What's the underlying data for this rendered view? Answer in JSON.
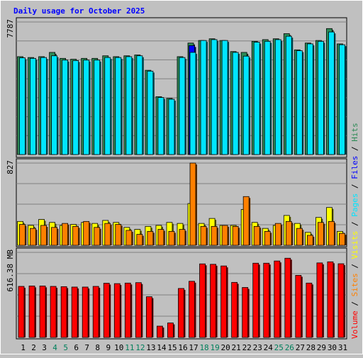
{
  "chart_data": {
    "type": "bar",
    "title": "Daily usage for October 2025",
    "categories": [
      "1",
      "2",
      "3",
      "4",
      "5",
      "6",
      "7",
      "8",
      "9",
      "10",
      "11",
      "12",
      "13",
      "14",
      "15",
      "16",
      "17",
      "18",
      "19",
      "20",
      "21",
      "22",
      "23",
      "24",
      "25",
      "26",
      "27",
      "28",
      "29",
      "30",
      "31"
    ],
    "weekend_days": [
      "4",
      "5",
      "11",
      "12",
      "18",
      "19",
      "25",
      "26"
    ],
    "panels": [
      {
        "id": "hits-files-pages",
        "ymax_label": "7787",
        "ymax": 7787,
        "series": [
          {
            "name": "Hits",
            "color": "#2e8b57",
            "values": [
              5750,
              5700,
              5750,
              6000,
              5650,
              5600,
              5650,
              5650,
              5800,
              5750,
              5800,
              5850,
              4950,
              3400,
              3300,
              5750,
              6550,
              6700,
              6800,
              6700,
              6050,
              6000,
              6650,
              6750,
              6800,
              7100,
              6150,
              6550,
              6700,
              7400,
              6500
            ]
          },
          {
            "name": "Files",
            "color": "#0000ff",
            "values": [
              0,
              0,
              0,
              0,
              0,
              0,
              0,
              0,
              0,
              0,
              0,
              0,
              0,
              0,
              0,
              0,
              6400,
              0,
              0,
              0,
              0,
              0,
              0,
              0,
              0,
              0,
              0,
              0,
              0,
              0,
              0
            ]
          },
          {
            "name": "Pages",
            "color": "#00e5ff",
            "values": [
              5680,
              5650,
              5700,
              5800,
              5550,
              5520,
              5550,
              5550,
              5700,
              5700,
              5750,
              5800,
              4900,
              3350,
              3250,
              5700,
              6000,
              6700,
              6750,
              6700,
              6000,
              5780,
              6600,
              6650,
              6750,
              6950,
              6100,
              6500,
              6650,
              7200,
              6450
            ]
          }
        ]
      },
      {
        "id": "visits-sites",
        "ymax_label": "827",
        "ymax": 827,
        "series": [
          {
            "name": "Visits",
            "color": "#ffff00",
            "values": [
              240,
              200,
              260,
              230,
              200,
              210,
              230,
              220,
              250,
              230,
              180,
              160,
              190,
              200,
              230,
              220,
              420,
              220,
              270,
              200,
              200,
              360,
              230,
              170,
              200,
              300,
              220,
              130,
              280,
              380,
              140
            ]
          },
          {
            "name": "Sites",
            "color": "#ff8000",
            "values": [
              210,
              170,
              200,
              180,
              220,
              190,
              240,
              180,
              220,
              210,
              150,
              110,
              140,
              160,
              140,
              160,
              827,
              190,
              190,
              200,
              190,
              490,
              190,
              140,
              220,
              240,
              170,
              100,
              230,
              240,
              120
            ]
          }
        ]
      },
      {
        "id": "volume",
        "ymax_label": "616.38 MB",
        "ymax": 616.38,
        "series": [
          {
            "name": "Volume",
            "color": "#ff0000",
            "values": [
              370,
              373,
              373,
              370,
              368,
              365,
              365,
              370,
              393,
              390,
              394,
              397,
              295,
              82,
              105,
              355,
              407,
              533,
              530,
              518,
              399,
              362,
              538,
              538,
              554,
              574,
              450,
              394,
              540,
              548,
              534
            ]
          }
        ]
      }
    ],
    "side_legend": [
      {
        "text": "Volume",
        "color": "#ff0000"
      },
      {
        "text": "Sites",
        "color": "#ff8000"
      },
      {
        "text": "Visits",
        "color": "#ffff00"
      },
      {
        "text": "Pages",
        "color": "#00e5ff"
      },
      {
        "text": "Files",
        "color": "#0000ff"
      },
      {
        "text": "Hits",
        "color": "#2e8b57"
      }
    ],
    "colors": {
      "label": "#0000ff",
      "weekend": "#00805c",
      "weekday": "#000000",
      "grid": "#808080",
      "slash": "#000000"
    }
  }
}
